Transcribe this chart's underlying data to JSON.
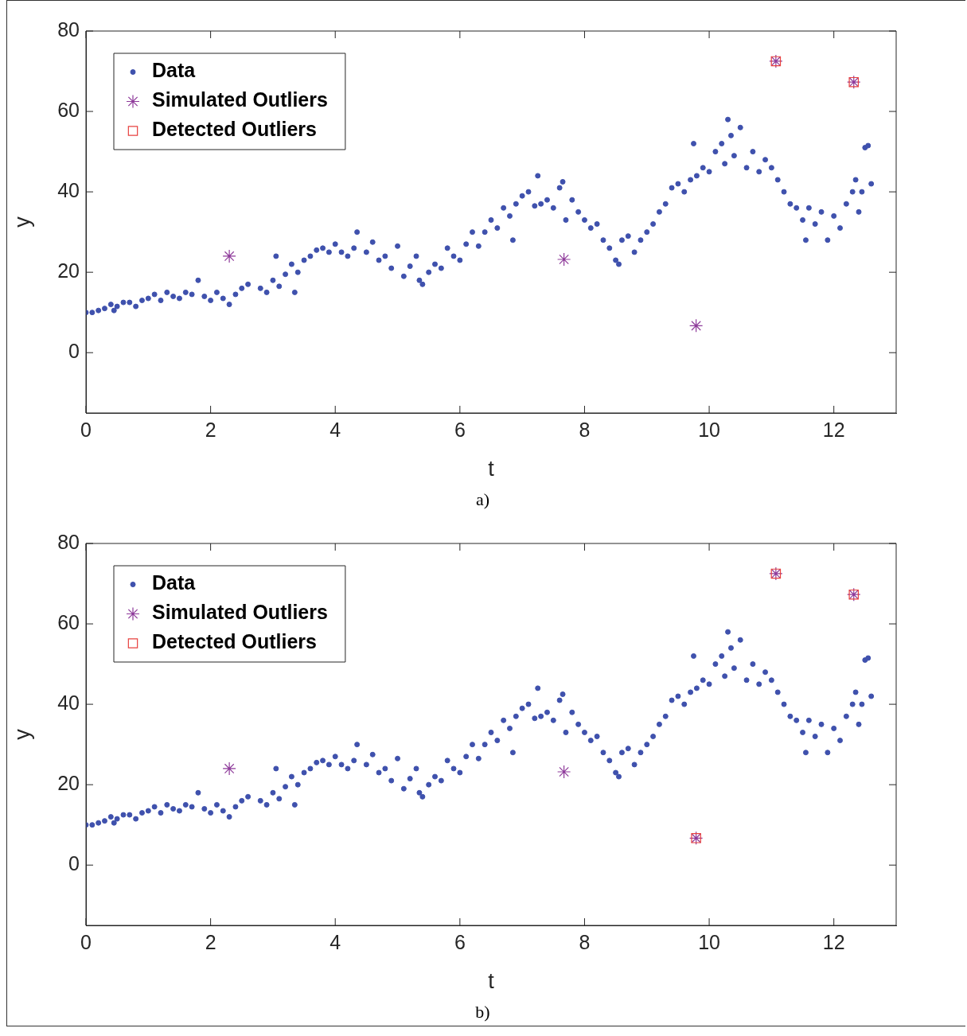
{
  "chart_data": [
    {
      "type": "scatter",
      "xlabel": "t",
      "ylabel": "y",
      "xlim": [
        0,
        13
      ],
      "ylim": [
        -15,
        80
      ],
      "xticks": [
        0,
        2,
        4,
        6,
        8,
        10,
        12
      ],
      "yticks": [
        0,
        20,
        40,
        60,
        80
      ],
      "legend": "top left",
      "annotations": [
        "a)"
      ],
      "series": [
        {
          "name": "Data",
          "color": "#3f51ad",
          "marker": "circle",
          "x": [
            0,
            0.1,
            0.2,
            0.3,
            0.4,
            0.45,
            0.5,
            0.6,
            0.7,
            0.8,
            0.9,
            1.0,
            1.1,
            1.2,
            1.3,
            1.4,
            1.5,
            1.6,
            1.7,
            1.8,
            1.9,
            2.0,
            2.1,
            2.2,
            2.3,
            2.4,
            2.5,
            2.6,
            2.8,
            2.9,
            3.0,
            3.05,
            3.1,
            3.2,
            3.3,
            3.35,
            3.4,
            3.5,
            3.6,
            3.7,
            3.8,
            3.9,
            4.0,
            4.1,
            4.2,
            4.3,
            4.35,
            4.5,
            4.6,
            4.7,
            4.8,
            4.9,
            5.0,
            5.1,
            5.2,
            5.3,
            5.35,
            5.4,
            5.5,
            5.6,
            5.7,
            5.8,
            5.9,
            6.0,
            6.1,
            6.2,
            6.3,
            6.4,
            6.5,
            6.6,
            6.7,
            6.8,
            6.85,
            6.9,
            7.0,
            7.1,
            7.2,
            7.25,
            7.3,
            7.4,
            7.5,
            7.6,
            7.65,
            7.7,
            7.8,
            7.9,
            8.0,
            8.1,
            8.2,
            8.3,
            8.4,
            8.5,
            8.55,
            8.6,
            8.7,
            8.8,
            8.9,
            9.0,
            9.1,
            9.2,
            9.3,
            9.4,
            9.5,
            9.6,
            9.7,
            9.75,
            9.8,
            9.9,
            10.0,
            10.1,
            10.2,
            10.25,
            10.3,
            10.35,
            10.4,
            10.5,
            10.6,
            10.7,
            10.8,
            10.9,
            11.0,
            11.1,
            11.2,
            11.3,
            11.4,
            11.5,
            11.55,
            11.6,
            11.7,
            11.8,
            11.9,
            12.0,
            12.1,
            12.2,
            12.3,
            12.35,
            12.4,
            12.45,
            12.5,
            12.55,
            12.6
          ],
          "values": [
            10,
            10,
            10.5,
            11,
            12,
            10.5,
            11.5,
            12.5,
            12.5,
            11.5,
            13,
            13.5,
            14.5,
            13,
            15,
            14,
            13.5,
            15,
            14.5,
            18,
            14,
            13,
            15,
            13.5,
            12,
            14.5,
            16,
            17,
            16,
            15,
            18,
            24,
            16.5,
            19.5,
            22,
            15,
            20,
            23,
            24,
            25.5,
            26,
            25,
            27,
            25,
            24,
            26,
            30,
            25,
            27.5,
            23,
            24,
            21,
            26.5,
            19,
            21.5,
            24,
            18,
            17,
            20,
            22,
            21,
            26,
            24,
            23,
            27,
            30,
            26.5,
            30,
            33,
            31,
            36,
            34,
            28,
            37,
            39,
            40,
            36.5,
            44,
            37,
            38,
            36,
            41,
            42.5,
            33,
            38,
            35,
            33,
            31,
            32,
            28,
            26,
            23,
            22,
            28,
            29,
            25,
            28,
            30,
            32,
            35,
            37,
            41,
            42,
            40,
            43,
            52,
            44,
            46,
            45,
            50,
            52,
            47,
            58,
            54,
            49,
            56,
            46,
            50,
            45,
            48,
            46,
            43,
            40,
            37,
            36,
            33,
            28,
            36,
            32,
            35,
            28,
            34,
            31,
            37,
            40,
            43,
            35,
            40,
            51,
            51.5,
            42
          ]
        },
        {
          "name": "Simulated Outliers",
          "color": "#8e3a9a",
          "marker": "cross",
          "x": [
            2.3,
            7.67,
            9.79,
            11.07,
            12.32
          ],
          "values": [
            24,
            23.2,
            6.7,
            72.5,
            67.3
          ]
        },
        {
          "name": "Detected Outliers",
          "color": "#e8413f",
          "marker": "square",
          "x": [
            11.07,
            12.32
          ],
          "values": [
            72.5,
            67.3
          ]
        }
      ]
    },
    {
      "type": "scatter",
      "xlabel": "t",
      "ylabel": "y",
      "xlim": [
        0,
        13
      ],
      "ylim": [
        -15,
        80
      ],
      "xticks": [
        0,
        2,
        4,
        6,
        8,
        10,
        12
      ],
      "yticks": [
        0,
        20,
        40,
        60,
        80
      ],
      "legend": "top left",
      "annotations": [
        "b)"
      ],
      "series": [
        {
          "name": "Data",
          "color": "#3f51ad",
          "marker": "circle",
          "x": [
            0,
            0.1,
            0.2,
            0.3,
            0.4,
            0.45,
            0.5,
            0.6,
            0.7,
            0.8,
            0.9,
            1.0,
            1.1,
            1.2,
            1.3,
            1.4,
            1.5,
            1.6,
            1.7,
            1.8,
            1.9,
            2.0,
            2.1,
            2.2,
            2.3,
            2.4,
            2.5,
            2.6,
            2.8,
            2.9,
            3.0,
            3.05,
            3.1,
            3.2,
            3.3,
            3.35,
            3.4,
            3.5,
            3.6,
            3.7,
            3.8,
            3.9,
            4.0,
            4.1,
            4.2,
            4.3,
            4.35,
            4.5,
            4.6,
            4.7,
            4.8,
            4.9,
            5.0,
            5.1,
            5.2,
            5.3,
            5.35,
            5.4,
            5.5,
            5.6,
            5.7,
            5.8,
            5.9,
            6.0,
            6.1,
            6.2,
            6.3,
            6.4,
            6.5,
            6.6,
            6.7,
            6.8,
            6.85,
            6.9,
            7.0,
            7.1,
            7.2,
            7.25,
            7.3,
            7.4,
            7.5,
            7.6,
            7.65,
            7.7,
            7.8,
            7.9,
            8.0,
            8.1,
            8.2,
            8.3,
            8.4,
            8.5,
            8.55,
            8.6,
            8.7,
            8.8,
            8.9,
            9.0,
            9.1,
            9.2,
            9.3,
            9.4,
            9.5,
            9.6,
            9.7,
            9.75,
            9.8,
            9.9,
            10.0,
            10.1,
            10.2,
            10.25,
            10.3,
            10.35,
            10.4,
            10.5,
            10.6,
            10.7,
            10.8,
            10.9,
            11.0,
            11.1,
            11.2,
            11.3,
            11.4,
            11.5,
            11.55,
            11.6,
            11.7,
            11.8,
            11.9,
            12.0,
            12.1,
            12.2,
            12.3,
            12.35,
            12.4,
            12.45,
            12.5,
            12.55,
            12.6
          ],
          "values": [
            10,
            10,
            10.5,
            11,
            12,
            10.5,
            11.5,
            12.5,
            12.5,
            11.5,
            13,
            13.5,
            14.5,
            13,
            15,
            14,
            13.5,
            15,
            14.5,
            18,
            14,
            13,
            15,
            13.5,
            12,
            14.5,
            16,
            17,
            16,
            15,
            18,
            24,
            16.5,
            19.5,
            22,
            15,
            20,
            23,
            24,
            25.5,
            26,
            25,
            27,
            25,
            24,
            26,
            30,
            25,
            27.5,
            23,
            24,
            21,
            26.5,
            19,
            21.5,
            24,
            18,
            17,
            20,
            22,
            21,
            26,
            24,
            23,
            27,
            30,
            26.5,
            30,
            33,
            31,
            36,
            34,
            28,
            37,
            39,
            40,
            36.5,
            44,
            37,
            38,
            36,
            41,
            42.5,
            33,
            38,
            35,
            33,
            31,
            32,
            28,
            26,
            23,
            22,
            28,
            29,
            25,
            28,
            30,
            32,
            35,
            37,
            41,
            42,
            40,
            43,
            52,
            44,
            46,
            45,
            50,
            52,
            47,
            58,
            54,
            49,
            56,
            46,
            50,
            45,
            48,
            46,
            43,
            40,
            37,
            36,
            33,
            28,
            36,
            32,
            35,
            28,
            34,
            31,
            37,
            40,
            43,
            35,
            40,
            51,
            51.5,
            42
          ]
        },
        {
          "name": "Simulated Outliers",
          "color": "#8e3a9a",
          "marker": "cross",
          "x": [
            2.3,
            7.67,
            9.79,
            11.07,
            12.32
          ],
          "values": [
            24,
            23.2,
            6.7,
            72.5,
            67.3
          ]
        },
        {
          "name": "Detected Outliers",
          "color": "#e8413f",
          "marker": "square",
          "x": [
            9.79,
            11.07,
            12.32
          ],
          "values": [
            6.7,
            72.5,
            67.3
          ]
        }
      ]
    }
  ]
}
